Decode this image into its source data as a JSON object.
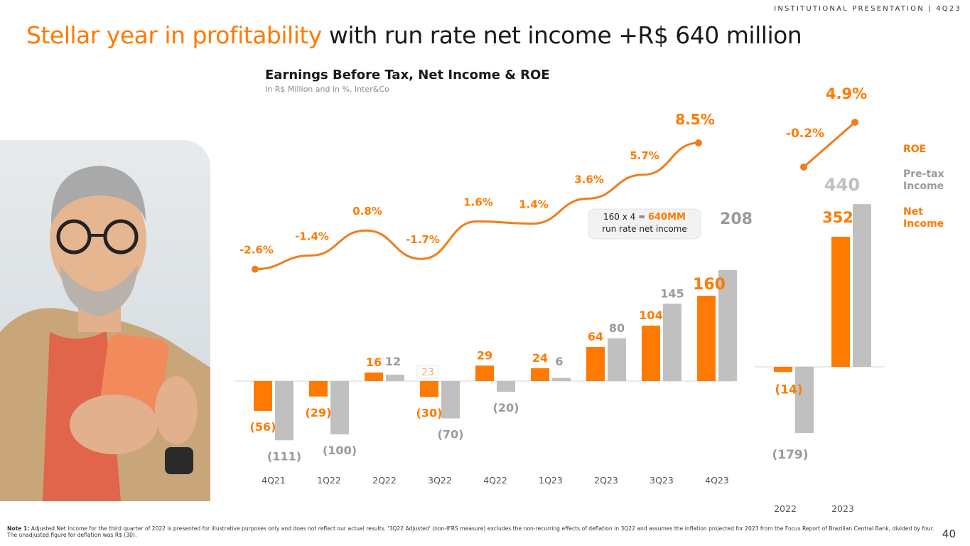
{
  "header": {
    "tag": "INSTITUTIONAL PRESENTATION | 4Q23",
    "title_highlight": "Stellar year in profitability",
    "title_rest": " with run rate net income +R$ 640 million"
  },
  "chart_data": {
    "type": "bar",
    "title": "Earnings Before Tax, Net Income & ROE",
    "subtitle": "In R$ Million and in %, Inter&Co",
    "quarterly": {
      "categories": [
        "4Q21",
        "1Q22",
        "2Q22",
        "3Q22",
        "4Q22",
        "1Q23",
        "2Q23",
        "3Q23",
        "4Q23"
      ],
      "series": [
        {
          "name": "Net Income",
          "values": [
            -56,
            -29,
            16,
            -30,
            29,
            24,
            64,
            104,
            160
          ],
          "labels": [
            "(56)",
            "(29)",
            "16",
            "(30)",
            "29",
            "24",
            "64",
            "104",
            "160"
          ]
        },
        {
          "name": "Pre-tax Income",
          "values": [
            -111,
            -100,
            12,
            -70,
            -20,
            6,
            80,
            145,
            208
          ],
          "labels": [
            "(111)",
            "(100)",
            "12",
            "(70)",
            "(20)",
            "6",
            "80",
            "145",
            "208"
          ]
        },
        {
          "name": "ROE",
          "values": [
            -2.6,
            -1.4,
            0.8,
            -1.7,
            1.6,
            1.4,
            3.6,
            5.7,
            8.5
          ],
          "labels": [
            "-2.6%",
            "-1.4%",
            "0.8%",
            "-1.7%",
            "1.6%",
            "1.4%",
            "3.6%",
            "5.7%",
            "8.5%"
          ]
        }
      ],
      "adjusted_3q22_label": "23"
    },
    "annual": {
      "categories": [
        "2022",
        "2023"
      ],
      "series": [
        {
          "name": "Net Income",
          "values": [
            -14,
            352
          ],
          "labels": [
            "(14)",
            "352"
          ]
        },
        {
          "name": "Pre-tax Income",
          "values": [
            -179,
            440
          ],
          "labels": [
            "(179)",
            "440"
          ]
        },
        {
          "name": "ROE",
          "values": [
            -0.2,
            4.9
          ],
          "labels": [
            "-0.2%",
            "4.9%"
          ]
        }
      ]
    },
    "callout": {
      "prefix": "160 x 4 = ",
      "highlight": "640MM",
      "line2": "run rate net income"
    },
    "legend": {
      "placement": "right",
      "items": [
        {
          "label": "ROE",
          "color": "#ff7a00"
        },
        {
          "label": "Pre-tax Income",
          "color": "#9a9a9a"
        },
        {
          "label": "Net Income",
          "color": "#ff7a00"
        }
      ]
    },
    "colors": {
      "net_income": "#ff7a00",
      "pretax": "#c0c0c0",
      "roe": "#f07d1e",
      "pretax_label": "#9a9a9a"
    }
  },
  "footnote": {
    "label": "Note 1:",
    "text": " Adjusted Net Income for the third quarter of 2022 is presented for illustrative purposes only and does not reflect our actual results. '3Q22 Adjusted' (non-IFRS measure) excludes the non-recurring effects of deflation in 3Q22 and assumes the inflation projected for 2023 from the Focus Report of Brazilian Central Bank, divided by four. The unadjusted figure for deflation was R$ (30)."
  },
  "page_number": "40"
}
